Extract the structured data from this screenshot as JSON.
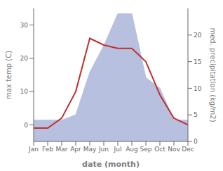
{
  "chart_data": {
    "type": "line",
    "categories": [
      "Jan",
      "Feb",
      "Mar",
      "Apr",
      "May",
      "Jun",
      "Jul",
      "Aug",
      "Sep",
      "Oct",
      "Nov",
      "Dec"
    ],
    "series": [
      {
        "type": "area",
        "axis": "y2",
        "color": "#b8c0e0",
        "values": [
          4,
          4,
          4,
          5,
          13,
          18,
          24,
          24,
          12,
          10,
          4,
          4
        ]
      },
      {
        "type": "line",
        "color": "#c03030",
        "values": [
          -1,
          -1,
          2,
          10,
          26,
          24,
          23,
          23,
          19,
          9,
          2,
          0
        ]
      }
    ],
    "xlabel": "date (month)",
    "ylabel": "max temp (C)",
    "y2label": "med. precipitation (kg/m2)",
    "ylim": [
      -5,
      35
    ],
    "yticks": [
      0,
      10,
      20,
      30
    ],
    "y2lim": [
      0,
      25
    ],
    "y2ticks": [
      0,
      5,
      10,
      15,
      20
    ],
    "grid": false
  }
}
